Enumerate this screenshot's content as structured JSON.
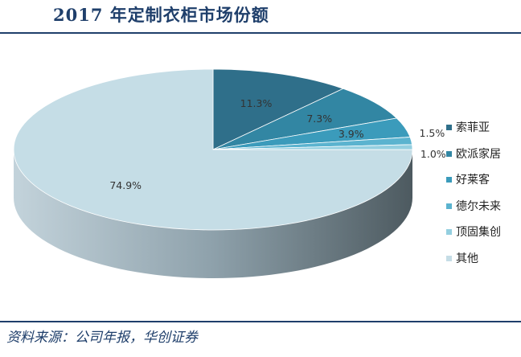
{
  "title": "2017 年定制衣柜市场份额",
  "source": "资料来源：公司年报，华创证券",
  "colors": {
    "rule": "#1f3f6b",
    "text": "#222222",
    "label": "#333333"
  },
  "chart_data": {
    "type": "pie",
    "style": "3d",
    "labels": [
      "索菲亚",
      "欧派家居",
      "好莱客",
      "德尔未来",
      "顶固集创",
      "其他"
    ],
    "values": [
      11.3,
      7.3,
      3.9,
      1.5,
      1.0,
      74.9
    ],
    "value_labels": [
      "11.3%",
      "7.3%",
      "3.9%",
      "1.5%",
      "1.0%",
      "74.9%"
    ],
    "colors": [
      "#2f6f8a",
      "#3286a3",
      "#3b9bbb",
      "#5bb3cf",
      "#94cfe0",
      "#c5dde6"
    ],
    "legend_position": "right"
  }
}
